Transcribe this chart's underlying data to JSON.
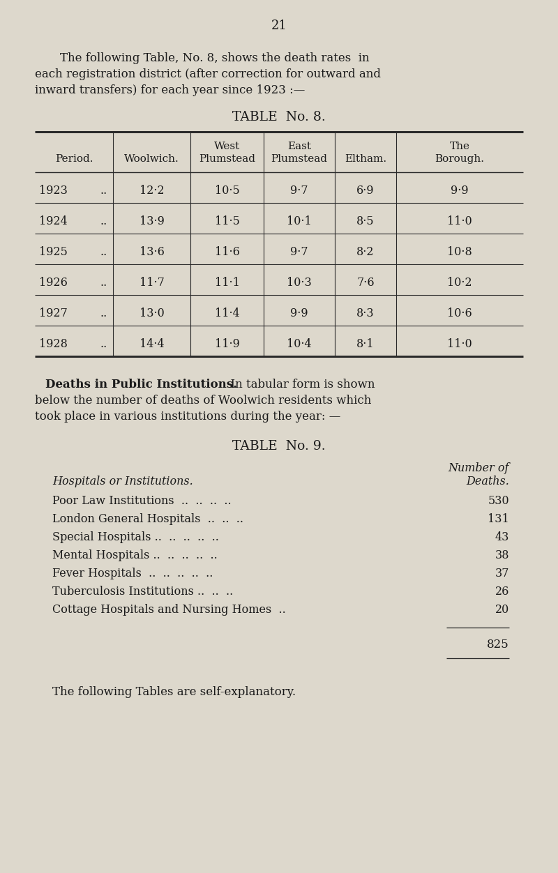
{
  "page_number": "21",
  "bg_color": "#ddd8cc",
  "text_color": "#1a1a1a",
  "intro_line1": "    The following Table, No. 8, shows the death rates  in",
  "intro_line2": "each registration district (after correction for outward and",
  "intro_line3": "inward transfers) for each year since 1923 :—",
  "table8_title": "TABLE  No. 8.",
  "table8_headers_row1": [
    "",
    "",
    "West",
    "East",
    "",
    "The"
  ],
  "table8_headers_row2": [
    "Period.",
    "Woolwich.",
    "Plumstead",
    "Plumstead",
    "Eltham.",
    "Borough."
  ],
  "table8_rows": [
    [
      "1923",
      "..",
      "12·2",
      "10·5",
      "9·7",
      "6·9",
      "9·9"
    ],
    [
      "1924",
      "..",
      "13·9",
      "11·5",
      "10·1",
      "8·5",
      "11·0"
    ],
    [
      "1925",
      "..",
      "13·6",
      "11·6",
      "9·7",
      "8·2",
      "10·8"
    ],
    [
      "1926",
      "..",
      "11·7",
      "11·1",
      "10·3",
      "7·6",
      "10·2"
    ],
    [
      "1927",
      "..",
      "13·0",
      "11·4",
      "9·9",
      "8·3",
      "10·6"
    ],
    [
      "1928",
      "..",
      "14·4",
      "11·9",
      "10·4",
      "8·1",
      "11·0"
    ]
  ],
  "deaths_bold": "Deaths in Public Institutions.",
  "deaths_rest_line1": "  In tabular form is shown",
  "deaths_line2": "below the number of deaths of Woolwich residents which",
  "deaths_line3": "took place in various institutions during the year: —",
  "table9_title": "TABLE  No. 9.",
  "table9_hdr1": "Number of",
  "table9_hdr2": "Deaths.",
  "table9_inst_hdr": "Hospitals or Institutions.",
  "table9_rows": [
    [
      "Poor Law Institutions  ..",
      "..",
      "..",
      "..",
      "530"
    ],
    [
      "London General Hospitals",
      "..",
      "..",
      "..",
      "131"
    ],
    [
      "Special Hospitals ..",
      "..",
      "..",
      "..",
      "43"
    ],
    [
      "Mental Hospitals ..",
      "..",
      "..",
      "..",
      "38"
    ],
    [
      "Fever Hospitals  ..",
      "..",
      "..",
      "..",
      "37"
    ],
    [
      "Tuberculosis Institutions ..",
      "..",
      "..",
      "..",
      "26"
    ],
    [
      "Cottage Hospitals and Nursing Homes",
      "..",
      "",
      "",
      "20"
    ]
  ],
  "table9_total": "825",
  "footer_text": "The following Tables are self-explanatory."
}
